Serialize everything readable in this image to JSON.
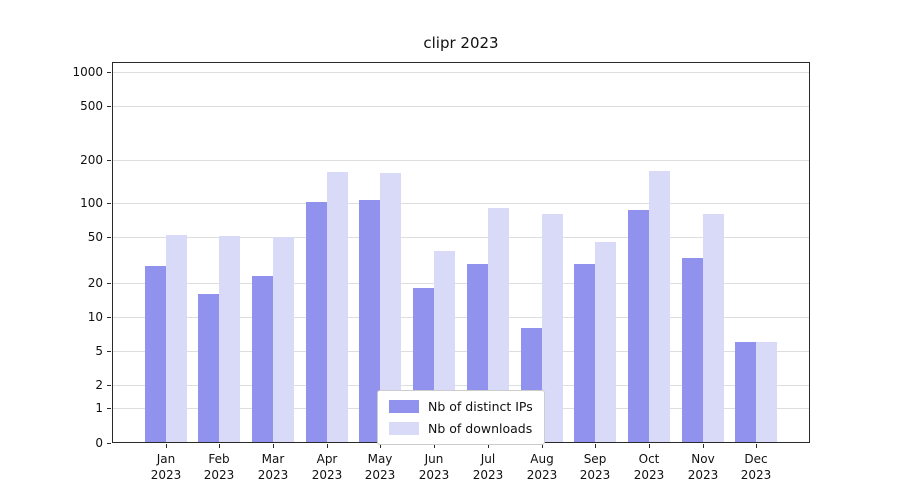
{
  "chart_data": {
    "type": "bar",
    "title": "clipr 2023",
    "categories": [
      "Jan",
      "Feb",
      "Mar",
      "Apr",
      "May",
      "Jun",
      "Jul",
      "Aug",
      "Sep",
      "Oct",
      "Nov",
      "Dec"
    ],
    "category_year": "2023",
    "series": [
      {
        "name": "Nb of distinct IPs",
        "color": "#9192ed",
        "values": [
          28,
          16,
          23,
          101,
          105,
          18,
          29,
          8,
          29,
          86,
          33,
          6
        ]
      },
      {
        "name": "Nb of downloads",
        "color": "#d9daf8",
        "values": [
          52,
          51,
          50,
          165,
          163,
          38,
          90,
          80,
          45,
          168,
          80,
          6
        ]
      }
    ],
    "yticks": [
      0,
      1,
      2,
      5,
      10,
      20,
      50,
      100,
      200,
      500,
      1000
    ],
    "ylim": [
      0,
      1000
    ],
    "y_scale": "symlog",
    "grid": "horizontal",
    "legend_position": "lower-center",
    "colors": {
      "grid": "#dedede",
      "spine": "#2a2a2a",
      "background": "#ffffff"
    }
  }
}
